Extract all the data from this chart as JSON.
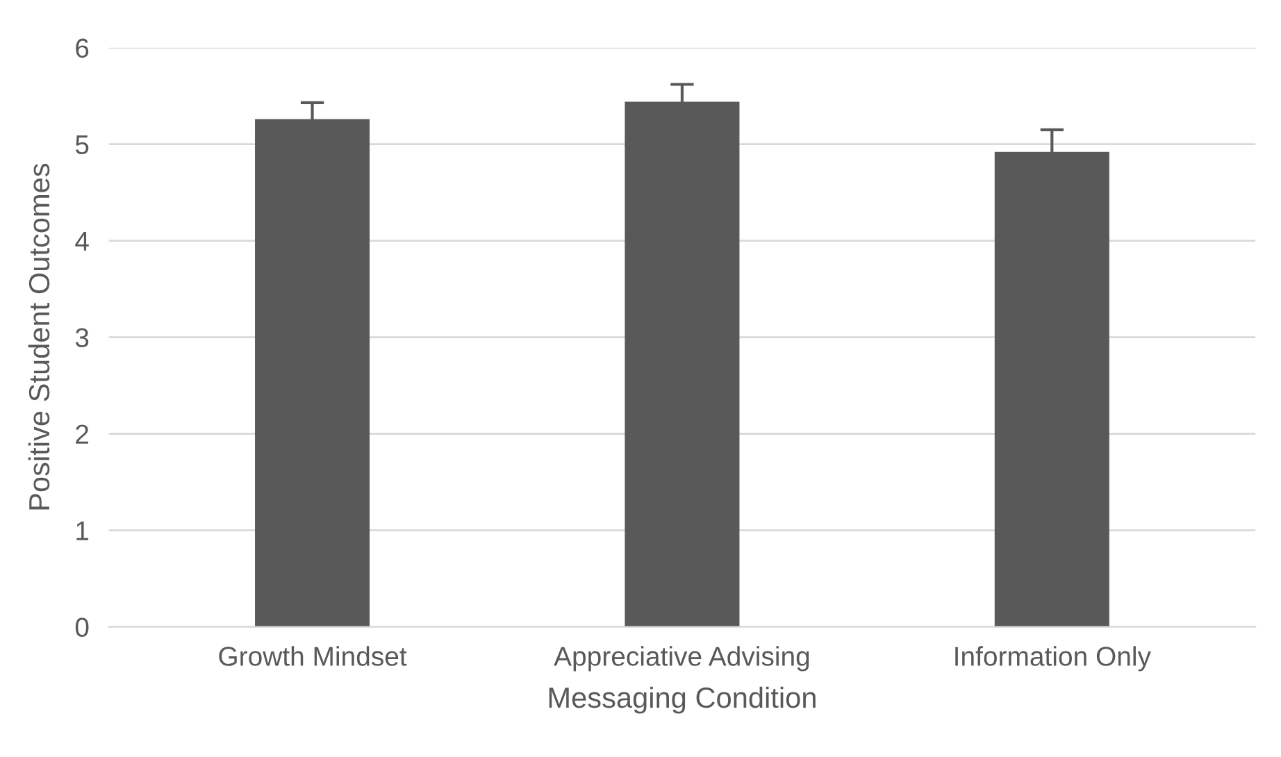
{
  "chart_data": {
    "type": "bar",
    "xlabel": "Messaging Condition",
    "ylabel": "Positive Student Outcomes",
    "categories": [
      "Growth Mindset",
      "Appreciative Advising",
      "Information Only"
    ],
    "values": [
      5.26,
      5.44,
      4.92
    ],
    "errors": [
      0.17,
      0.18,
      0.23
    ],
    "color": "#595959",
    "ylim": [
      0,
      6
    ],
    "yticks": [
      0,
      1,
      2,
      3,
      4,
      5,
      6
    ],
    "grid": "y",
    "legend": false
  }
}
